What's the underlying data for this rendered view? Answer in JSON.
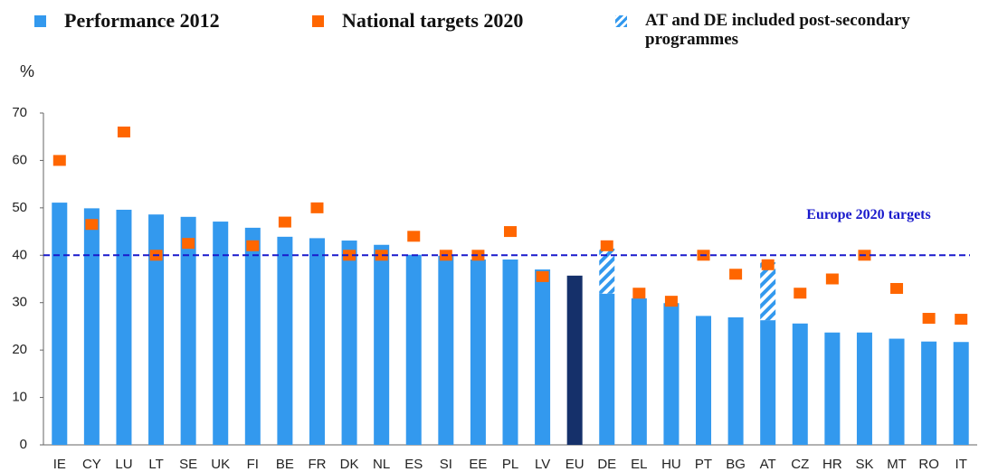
{
  "chart_data": {
    "type": "bar",
    "y_label": "%",
    "categories": [
      "IE",
      "CY",
      "LU",
      "LT",
      "SE",
      "UK",
      "FI",
      "BE",
      "FR",
      "DK",
      "NL",
      "ES",
      "SI",
      "EE",
      "PL",
      "LV",
      "EU",
      "DE",
      "EL",
      "HU",
      "PT",
      "BG",
      "AT",
      "CZ",
      "HR",
      "SK",
      "MT",
      "RO",
      "IT"
    ],
    "series": [
      {
        "name": "Performance 2012",
        "color": "#3399ee",
        "colors": [
          "#3399ee",
          "#3399ee",
          "#3399ee",
          "#3399ee",
          "#3399ee",
          "#3399ee",
          "#3399ee",
          "#3399ee",
          "#3399ee",
          "#3399ee",
          "#3399ee",
          "#3399ee",
          "#3399ee",
          "#3399ee",
          "#3399ee",
          "#3399ee",
          "#15306a",
          "#3399ee",
          "#3399ee",
          "#3399ee",
          "#3399ee",
          "#3399ee",
          "#3399ee",
          "#3399ee",
          "#3399ee",
          "#3399ee",
          "#3399ee",
          "#3399ee",
          "#3399ee"
        ],
        "values": [
          51.1,
          49.9,
          49.6,
          48.6,
          48.1,
          47.1,
          45.8,
          43.9,
          43.6,
          43.1,
          42.2,
          40.1,
          39.9,
          39.1,
          39.1,
          37.0,
          35.7,
          31.9,
          30.9,
          29.9,
          27.2,
          26.9,
          26.3,
          25.6,
          23.7,
          23.7,
          22.4,
          21.8,
          21.7
        ]
      },
      {
        "name": "National targets 2020",
        "color": "#ff6600",
        "marker": "square",
        "values": [
          60,
          46.5,
          66,
          40,
          42.5,
          null,
          42,
          47,
          50,
          40,
          40,
          44,
          40,
          40,
          45,
          35.5,
          null,
          42,
          32,
          30.3,
          40,
          36,
          38,
          32,
          35,
          40,
          33,
          26.7,
          26.5
        ]
      },
      {
        "name": "AT and DE included post-secondary programmes",
        "color": "#3399ee",
        "hatched": true,
        "stacked": true,
        "values": [
          null,
          null,
          null,
          null,
          null,
          null,
          null,
          null,
          null,
          null,
          null,
          null,
          null,
          null,
          null,
          null,
          null,
          9.5,
          null,
          null,
          null,
          null,
          12.2,
          null,
          null,
          null,
          null,
          null,
          null
        ]
      }
    ],
    "reference_line": {
      "value": 40,
      "label": "Europe 2020 targets",
      "color": "#1a1acc"
    },
    "ylim": [
      0,
      70
    ],
    "yticks": [
      0,
      10,
      20,
      30,
      40,
      50,
      60,
      70
    ],
    "grid": false
  }
}
